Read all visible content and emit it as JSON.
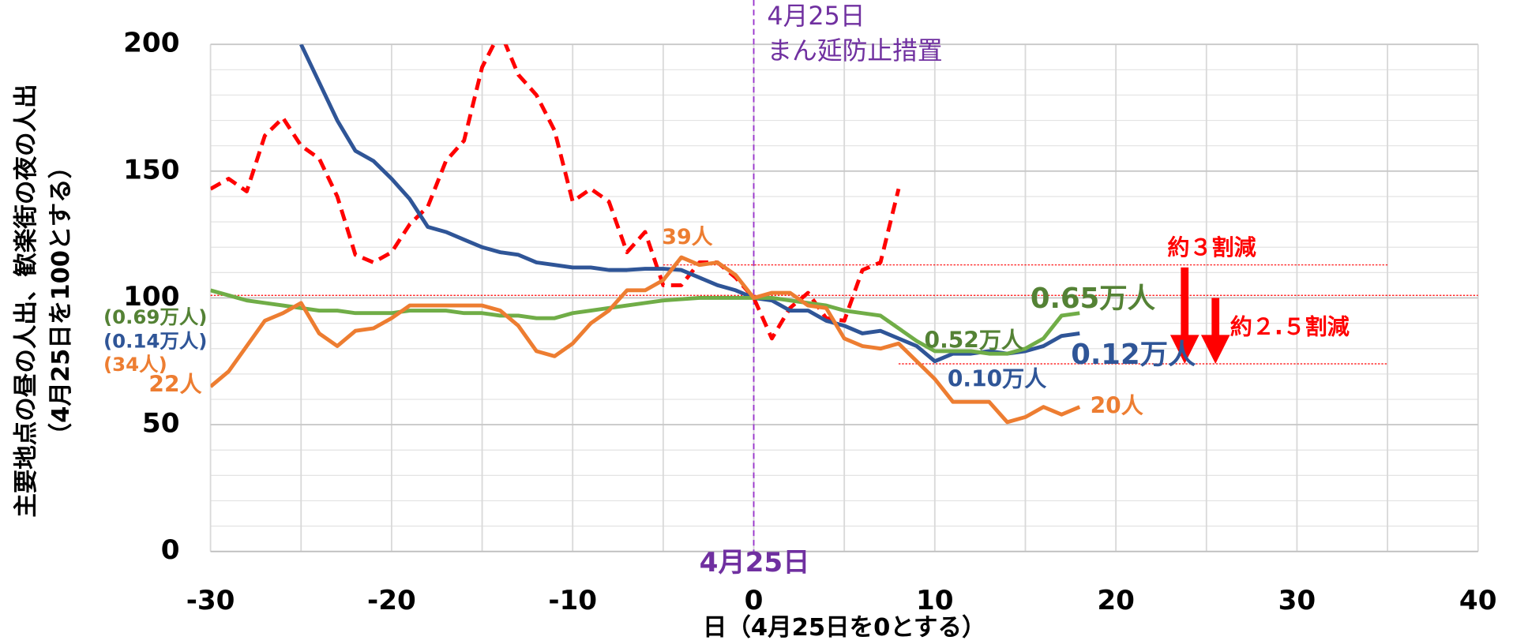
{
  "chart_data": {
    "type": "line",
    "xlabel": "日（4月25日を0とする）",
    "ylabel": [
      "主要地点の昼の人出、歓楽街の夜の人出",
      "（4月25日を100とする）"
    ],
    "xlim": [
      -30,
      40
    ],
    "ylim": [
      0,
      200
    ],
    "xticks": [
      -30,
      -20,
      -10,
      0,
      10,
      20,
      30,
      40
    ],
    "yticks": [
      0,
      50,
      100,
      150,
      200
    ],
    "xgrid": [
      -30,
      -25,
      -20,
      -15,
      -10,
      -5,
      0,
      5,
      10,
      15,
      20,
      25,
      30,
      35,
      40
    ],
    "ygrid": [
      0,
      10,
      20,
      30,
      40,
      50,
      60,
      70,
      80,
      90,
      100,
      110,
      120,
      130,
      140,
      150,
      160,
      170,
      180,
      190,
      200
    ],
    "grid": true,
    "series": [
      {
        "color": "#ff0000",
        "dash": true,
        "x": [
          -30,
          -29,
          -28,
          -27,
          -26,
          -25,
          -24,
          -23,
          -22,
          -21,
          -20,
          -19,
          -18,
          -17,
          -16,
          -15,
          -14,
          -13,
          -12,
          -11,
          -10,
          -9,
          -8,
          -7,
          -6,
          -5,
          -4,
          -3,
          -2,
          -1,
          0,
          1,
          2,
          3,
          4,
          5,
          6,
          7,
          8
        ],
        "values": [
          143,
          147,
          142,
          164,
          171,
          160,
          155,
          140,
          117,
          114,
          118,
          129,
          136,
          154,
          162,
          191,
          205,
          188,
          180,
          166,
          138,
          143,
          138,
          118,
          126,
          105,
          105,
          114,
          114,
          108,
          100,
          84,
          96,
          102,
          92,
          91,
          111,
          114,
          143
        ]
      },
      {
        "color": "#2f5597",
        "dash": false,
        "x": [
          -25,
          -24,
          -23,
          -22,
          -21,
          -20,
          -19,
          -18,
          -17,
          -16,
          -15,
          -14,
          -13,
          -12,
          -11,
          -10,
          -9,
          -8,
          -7,
          -6,
          -5,
          -4,
          -3,
          -2,
          -1,
          0,
          1,
          2,
          3,
          4,
          5,
          6,
          7,
          8,
          9,
          10,
          11,
          12,
          13,
          14,
          15,
          16,
          17,
          18
        ],
        "values": [
          200,
          185,
          170,
          158,
          154,
          147,
          139,
          128,
          126,
          123,
          120,
          118,
          117,
          114,
          113,
          112,
          112,
          111,
          111,
          111.5,
          111.5,
          111,
          108,
          105,
          103,
          100,
          99,
          95,
          95,
          91,
          89,
          86,
          87,
          84,
          81,
          75,
          78,
          78,
          79,
          78,
          79,
          81,
          85,
          86
        ]
      },
      {
        "color": "#70ad47",
        "dash": false,
        "x": [
          -30,
          -29,
          -28,
          -27,
          -26,
          -25,
          -24,
          -23,
          -22,
          -21,
          -20,
          -19,
          -18,
          -17,
          -16,
          -15,
          -14,
          -13,
          -12,
          -11,
          -10,
          -9,
          -8,
          -7,
          -6,
          -5,
          -4,
          -3,
          -2,
          -1,
          0,
          1,
          2,
          3,
          4,
          5,
          6,
          7,
          8,
          9,
          10,
          11,
          12,
          13,
          14,
          15,
          16,
          17,
          18
        ],
        "values": [
          103,
          101,
          99,
          98,
          97,
          96,
          95,
          95,
          94,
          94,
          94,
          95,
          95,
          95,
          94,
          94,
          93,
          93,
          92,
          92,
          94,
          95,
          96,
          97,
          98,
          99,
          99.5,
          100,
          100,
          100,
          100,
          100,
          99,
          98,
          97,
          95,
          94,
          93,
          88,
          83,
          79,
          79,
          79,
          78,
          78,
          80,
          84,
          93,
          94
        ]
      },
      {
        "color": "#ed7d31",
        "dash": false,
        "x": [
          -30,
          -29,
          -28,
          -27,
          -26,
          -25,
          -24,
          -23,
          -22,
          -21,
          -20,
          -19,
          -18,
          -17,
          -16,
          -15,
          -14,
          -13,
          -12,
          -11,
          -10,
          -9,
          -8,
          -7,
          -6,
          -5,
          -4,
          -3,
          -2,
          -1,
          0,
          1,
          2,
          3,
          4,
          5,
          6,
          7,
          8,
          9,
          10,
          11,
          12,
          13,
          14,
          15,
          16,
          17,
          18
        ],
        "values": [
          65,
          71,
          81,
          91,
          94,
          98,
          86,
          81,
          87,
          88,
          92,
          97,
          97,
          97,
          97,
          97,
          95,
          89,
          79,
          77,
          82,
          90,
          95,
          103,
          103,
          107,
          116,
          113,
          114,
          109,
          100,
          102,
          102,
          97,
          96,
          84,
          81,
          80,
          82,
          75,
          68,
          59,
          59,
          59,
          51,
          53,
          57,
          54,
          57
        ]
      }
    ],
    "vline": {
      "x": 0,
      "color": "#9933cc"
    },
    "reference_lines": [
      {
        "y": 113,
        "x": [
          -5,
          35
        ],
        "color": "#ff0000"
      },
      {
        "y": 101,
        "x": [
          -30,
          40
        ],
        "color": "#ff0000"
      },
      {
        "y": 74,
        "x": [
          8,
          35
        ],
        "color": "#ff0000"
      }
    ],
    "arrows": [
      {
        "x": 23.8,
        "from": 112,
        "to": 74,
        "color": "#ff0000"
      },
      {
        "x": 25.5,
        "from": 100,
        "to": 74,
        "color": "#ff0000"
      }
    ],
    "annotations": [
      {
        "text": "4月25日",
        "color": "#7030a0"
      },
      {
        "text": "まん延防止措置",
        "color": "#7030a0"
      },
      {
        "text": "4月25日",
        "color": "#7030a0"
      },
      {
        "text": "39人",
        "color": "#ed7d31"
      },
      {
        "text": "0.65万人",
        "color": "#548235"
      },
      {
        "text": "0.52万人",
        "color": "#548235"
      },
      {
        "text": "0.12万人",
        "color": "#2f5597"
      },
      {
        "text": "0.10万人",
        "color": "#2f5597"
      },
      {
        "text": "20人",
        "color": "#ed7d31"
      },
      {
        "text": "(0.69万人)",
        "color": "#548235"
      },
      {
        "text": "(0.14万人)",
        "color": "#2f5597"
      },
      {
        "text": "(34人)",
        "color": "#ed7d31"
      },
      {
        "text": "22人",
        "color": "#ed7d31"
      },
      {
        "text": "約３割減",
        "color": "#ff0000"
      },
      {
        "text": "約２.５割減",
        "color": "#ff0000"
      }
    ]
  }
}
